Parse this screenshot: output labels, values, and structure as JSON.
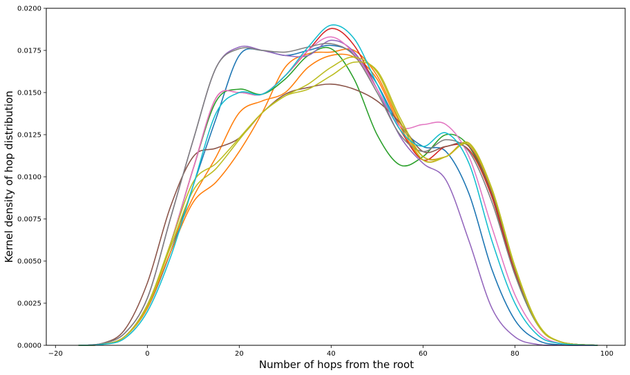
{
  "chart_data": {
    "type": "line",
    "title": "",
    "xlabel": "Number of hops from the root",
    "ylabel": "Kernel density of hop distribution",
    "xlim": [
      -22,
      104
    ],
    "ylim": [
      0,
      0.02
    ],
    "xticks": [
      -20,
      0,
      20,
      40,
      60,
      80,
      100
    ],
    "xtick_labels": [
      "−20",
      "0",
      "20",
      "40",
      "60",
      "80",
      "100"
    ],
    "yticks": [
      0,
      0.0025,
      0.005,
      0.0075,
      0.01,
      0.0125,
      0.015,
      0.0175,
      0.02
    ],
    "ytick_labels": [
      "0.0000",
      "0.0025",
      "0.0050",
      "0.0075",
      "0.0100",
      "0.0125",
      "0.0150",
      "0.0175",
      "0.0200"
    ],
    "grid": false,
    "legend": "none",
    "series": [
      {
        "color": "#1f77b4",
        "x": [
          -15,
          -10,
          -5,
          0,
          5,
          10,
          15,
          20,
          25,
          30,
          35,
          40,
          45,
          50,
          55,
          60,
          65,
          70,
          75,
          80,
          85,
          90,
          98
        ],
        "y": [
          0,
          5e-05,
          0.0005,
          0.0022,
          0.0055,
          0.0095,
          0.0135,
          0.0172,
          0.0175,
          0.0172,
          0.0175,
          0.0178,
          0.0173,
          0.0155,
          0.013,
          0.0118,
          0.0115,
          0.009,
          0.0045,
          0.0015,
          0.0003,
          3e-05,
          0
        ]
      },
      {
        "color": "#ff7f0e",
        "x": [
          -15,
          -10,
          -5,
          0,
          5,
          10,
          15,
          20,
          25,
          30,
          35,
          40,
          45,
          50,
          55,
          60,
          65,
          70,
          75,
          80,
          85,
          90,
          98
        ],
        "y": [
          0,
          5e-05,
          0.0005,
          0.0022,
          0.0055,
          0.0085,
          0.0097,
          0.0115,
          0.0138,
          0.0165,
          0.0173,
          0.0174,
          0.0175,
          0.016,
          0.0132,
          0.0112,
          0.0112,
          0.0119,
          0.009,
          0.0045,
          0.0012,
          0.0002,
          0
        ]
      },
      {
        "color": "#ff7f0e",
        "x": [
          -15,
          -10,
          -5,
          0,
          5,
          10,
          15,
          20,
          25,
          30,
          35,
          40,
          45,
          50,
          55,
          60,
          65,
          70,
          75,
          80,
          85,
          90,
          98
        ],
        "y": [
          0,
          5e-05,
          0.0005,
          0.0023,
          0.0058,
          0.0088,
          0.0112,
          0.0138,
          0.0145,
          0.015,
          0.0165,
          0.0172,
          0.0171,
          0.0158,
          0.013,
          0.011,
          0.0112,
          0.012,
          0.0092,
          0.0046,
          0.0012,
          0.0002,
          0
        ]
      },
      {
        "color": "#2ca02c",
        "x": [
          -15,
          -10,
          -5,
          0,
          5,
          10,
          15,
          20,
          25,
          30,
          35,
          40,
          45,
          50,
          55,
          60,
          65,
          70,
          75,
          80,
          85,
          90,
          98
        ],
        "y": [
          0,
          5e-05,
          0.0005,
          0.0024,
          0.006,
          0.0105,
          0.0145,
          0.0152,
          0.0149,
          0.0158,
          0.0172,
          0.0176,
          0.0158,
          0.0125,
          0.0107,
          0.0112,
          0.0125,
          0.0118,
          0.0088,
          0.0042,
          0.0012,
          0.0002,
          0
        ]
      },
      {
        "color": "#d62728",
        "x": [
          -15,
          -10,
          -5,
          0,
          5,
          10,
          15,
          20,
          25,
          30,
          35,
          40,
          45,
          50,
          55,
          60,
          65,
          70,
          75,
          80,
          85,
          90,
          98
        ],
        "y": [
          0,
          5e-05,
          0.0005,
          0.0024,
          0.006,
          0.0105,
          0.0147,
          0.015,
          0.0149,
          0.016,
          0.0175,
          0.0188,
          0.0178,
          0.0152,
          0.0128,
          0.011,
          0.0118,
          0.0116,
          0.0088,
          0.0043,
          0.0012,
          0.0002,
          0
        ]
      },
      {
        "color": "#9467bd",
        "x": [
          -15,
          -10,
          -5,
          0,
          5,
          10,
          15,
          20,
          25,
          30,
          35,
          40,
          45,
          50,
          55,
          60,
          65,
          70,
          75,
          80,
          85,
          90,
          98
        ],
        "y": [
          0,
          0.0001,
          0.0007,
          0.0028,
          0.0075,
          0.0122,
          0.0165,
          0.0177,
          0.0175,
          0.0172,
          0.0172,
          0.0181,
          0.0174,
          0.0152,
          0.0124,
          0.0108,
          0.0098,
          0.0062,
          0.0022,
          0.0005,
          5e-05,
          0,
          0
        ]
      },
      {
        "color": "#8c564b",
        "x": [
          -15,
          -10,
          -5,
          0,
          5,
          10,
          15,
          20,
          25,
          30,
          35,
          40,
          45,
          50,
          55,
          60,
          65,
          70,
          75,
          80,
          85,
          90,
          98
        ],
        "y": [
          0,
          0.0001,
          0.0009,
          0.0037,
          0.0082,
          0.0112,
          0.0117,
          0.0123,
          0.0138,
          0.0149,
          0.0153,
          0.0155,
          0.0152,
          0.0145,
          0.0132,
          0.0115,
          0.0118,
          0.0118,
          0.009,
          0.0045,
          0.0012,
          0.0002,
          0
        ]
      },
      {
        "color": "#e377c2",
        "x": [
          -15,
          -10,
          -5,
          0,
          5,
          10,
          15,
          20,
          25,
          30,
          35,
          40,
          45,
          50,
          55,
          60,
          65,
          70,
          75,
          80,
          85,
          90,
          98
        ],
        "y": [
          0,
          5e-05,
          0.0005,
          0.0024,
          0.006,
          0.0105,
          0.0147,
          0.015,
          0.0149,
          0.016,
          0.0175,
          0.0183,
          0.0173,
          0.0152,
          0.013,
          0.0131,
          0.0131,
          0.0112,
          0.007,
          0.003,
          0.0008,
          0.0001,
          0
        ]
      },
      {
        "color": "#7f7f7f",
        "x": [
          -15,
          -10,
          -5,
          0,
          5,
          10,
          15,
          20,
          25,
          30,
          35,
          40,
          45,
          50,
          55,
          60,
          65,
          70,
          75,
          80,
          85,
          90,
          98
        ],
        "y": [
          0,
          0.0001,
          0.0007,
          0.0028,
          0.0075,
          0.0122,
          0.0165,
          0.0176,
          0.0175,
          0.0174,
          0.0177,
          0.0179,
          0.0172,
          0.015,
          0.0125,
          0.0115,
          0.0122,
          0.0115,
          0.0085,
          0.0042,
          0.0012,
          0.0002,
          0
        ]
      },
      {
        "color": "#bcbd22",
        "x": [
          -15,
          -10,
          -5,
          0,
          5,
          10,
          15,
          20,
          25,
          30,
          35,
          40,
          45,
          50,
          55,
          60,
          65,
          70,
          75,
          80,
          85,
          90,
          98
        ],
        "y": [
          0,
          5e-05,
          0.0005,
          0.0023,
          0.0058,
          0.0092,
          0.0105,
          0.0122,
          0.0138,
          0.0148,
          0.0152,
          0.016,
          0.0168,
          0.0163,
          0.0135,
          0.0112,
          0.0112,
          0.012,
          0.0093,
          0.0047,
          0.0013,
          0.0002,
          0
        ]
      },
      {
        "color": "#bcbd22",
        "x": [
          -15,
          -10,
          -5,
          0,
          5,
          10,
          15,
          20,
          25,
          30,
          35,
          40,
          45,
          50,
          55,
          60,
          65,
          70,
          75,
          80,
          85,
          90,
          98
        ],
        "y": [
          0,
          5e-05,
          0.0005,
          0.0024,
          0.006,
          0.0097,
          0.0108,
          0.0123,
          0.0138,
          0.0148,
          0.0155,
          0.0165,
          0.0171,
          0.0162,
          0.0133,
          0.011,
          0.0112,
          0.0119,
          0.0092,
          0.0046,
          0.0012,
          0.0002,
          0
        ]
      },
      {
        "color": "#17becf",
        "x": [
          -15,
          -10,
          -5,
          0,
          5,
          10,
          15,
          20,
          25,
          30,
          35,
          40,
          45,
          50,
          55,
          60,
          65,
          70,
          75,
          80,
          85,
          90,
          98
        ],
        "y": [
          0,
          5e-05,
          0.0004,
          0.002,
          0.0052,
          0.0095,
          0.0138,
          0.015,
          0.0149,
          0.016,
          0.0177,
          0.019,
          0.0182,
          0.0155,
          0.0128,
          0.0118,
          0.0126,
          0.0108,
          0.0062,
          0.0025,
          0.0006,
          0.0001,
          0
        ]
      }
    ]
  }
}
